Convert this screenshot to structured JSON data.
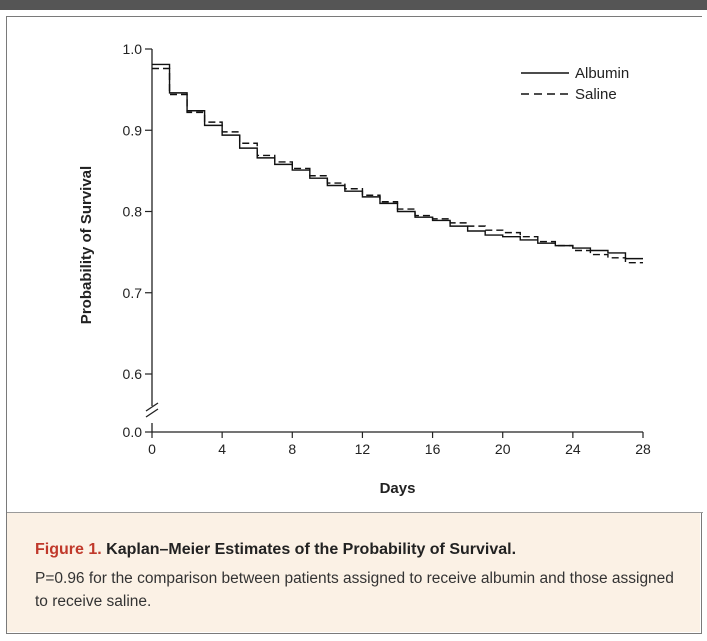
{
  "caption": {
    "label": "Figure 1.",
    "title": "Kaplan–Meier Estimates of the Probability of Survival.",
    "body": "P=0.96 for the comparison between patients assigned to receive albumin and those assigned to receive saline."
  },
  "chart_data": {
    "type": "line",
    "step": true,
    "xlabel": "Days",
    "ylabel": "Probability of Survival",
    "xlim": [
      0,
      28
    ],
    "x_ticks": [
      0,
      4,
      8,
      12,
      16,
      20,
      24,
      28
    ],
    "x_tick_labels": [
      "0",
      "4",
      "8",
      "12",
      "16",
      "20",
      "24",
      "28"
    ],
    "y_axis_break": true,
    "y_ticks": [
      0.0,
      0.6,
      0.7,
      0.8,
      0.9,
      1.0
    ],
    "y_tick_labels": [
      "0.0",
      "0.6",
      "0.7",
      "0.8",
      "0.9",
      "1.0"
    ],
    "grid": false,
    "legend": "top-right",
    "series": [
      {
        "name": "Albumin",
        "style": "solid",
        "color": "#111111",
        "x": [
          0,
          1,
          2,
          3,
          4,
          5,
          6,
          7,
          8,
          9,
          10,
          11,
          12,
          13,
          14,
          15,
          16,
          17,
          18,
          19,
          20,
          21,
          22,
          23,
          24,
          25,
          26,
          27,
          28
        ],
        "y": [
          0.981,
          0.946,
          0.924,
          0.906,
          0.894,
          0.878,
          0.866,
          0.858,
          0.851,
          0.841,
          0.832,
          0.825,
          0.818,
          0.81,
          0.8,
          0.793,
          0.789,
          0.782,
          0.776,
          0.771,
          0.769,
          0.765,
          0.761,
          0.758,
          0.755,
          0.752,
          0.749,
          0.742,
          0.742
        ]
      },
      {
        "name": "Saline",
        "style": "dashed",
        "color": "#111111",
        "x": [
          0,
          1,
          2,
          3,
          4,
          5,
          6,
          7,
          8,
          9,
          10,
          11,
          12,
          13,
          14,
          15,
          16,
          17,
          18,
          19,
          20,
          21,
          22,
          23,
          24,
          25,
          26,
          27,
          28
        ],
        "y": [
          0.976,
          0.944,
          0.922,
          0.91,
          0.898,
          0.884,
          0.869,
          0.861,
          0.853,
          0.844,
          0.835,
          0.828,
          0.82,
          0.812,
          0.803,
          0.795,
          0.791,
          0.786,
          0.782,
          0.777,
          0.774,
          0.769,
          0.763,
          0.758,
          0.752,
          0.747,
          0.743,
          0.737,
          0.737
        ]
      }
    ]
  }
}
